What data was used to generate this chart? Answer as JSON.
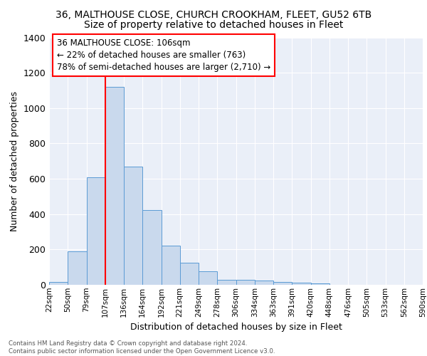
{
  "title1": "36, MALTHOUSE CLOSE, CHURCH CROOKHAM, FLEET, GU52 6TB",
  "title2": "Size of property relative to detached houses in Fleet",
  "xlabel": "Distribution of detached houses by size in Fleet",
  "ylabel": "Number of detached properties",
  "bin_labels": [
    "22sqm",
    "50sqm",
    "79sqm",
    "107sqm",
    "136sqm",
    "164sqm",
    "192sqm",
    "221sqm",
    "249sqm",
    "278sqm",
    "306sqm",
    "334sqm",
    "363sqm",
    "391sqm",
    "420sqm",
    "448sqm",
    "476sqm",
    "505sqm",
    "533sqm",
    "562sqm",
    "590sqm"
  ],
  "bar_heights": [
    15,
    190,
    610,
    1120,
    670,
    425,
    220,
    125,
    75,
    30,
    28,
    25,
    15,
    12,
    10,
    0,
    0,
    0,
    0,
    0
  ],
  "bar_color": "#c9d9ed",
  "bar_edge_color": "#5b9bd5",
  "red_line_x": 3.0,
  "annotation_text": "36 MALTHOUSE CLOSE: 106sqm\n← 22% of detached houses are smaller (763)\n78% of semi-detached houses are larger (2,710) →",
  "annotation_box_color": "white",
  "annotation_box_edge_color": "red",
  "ylim": [
    0,
    1400
  ],
  "yticks": [
    0,
    200,
    400,
    600,
    800,
    1000,
    1200,
    1400
  ],
  "footer_text": "Contains HM Land Registry data © Crown copyright and database right 2024.\nContains public sector information licensed under the Open Government Licence v3.0.",
  "background_color": "#eaeff8",
  "grid_color": "white",
  "title1_fontsize": 10,
  "title2_fontsize": 10,
  "xlabel_fontsize": 9,
  "ylabel_fontsize": 9,
  "annotation_fontsize": 8.5,
  "tick_fontsize": 7.5,
  "ytick_fontsize": 9
}
